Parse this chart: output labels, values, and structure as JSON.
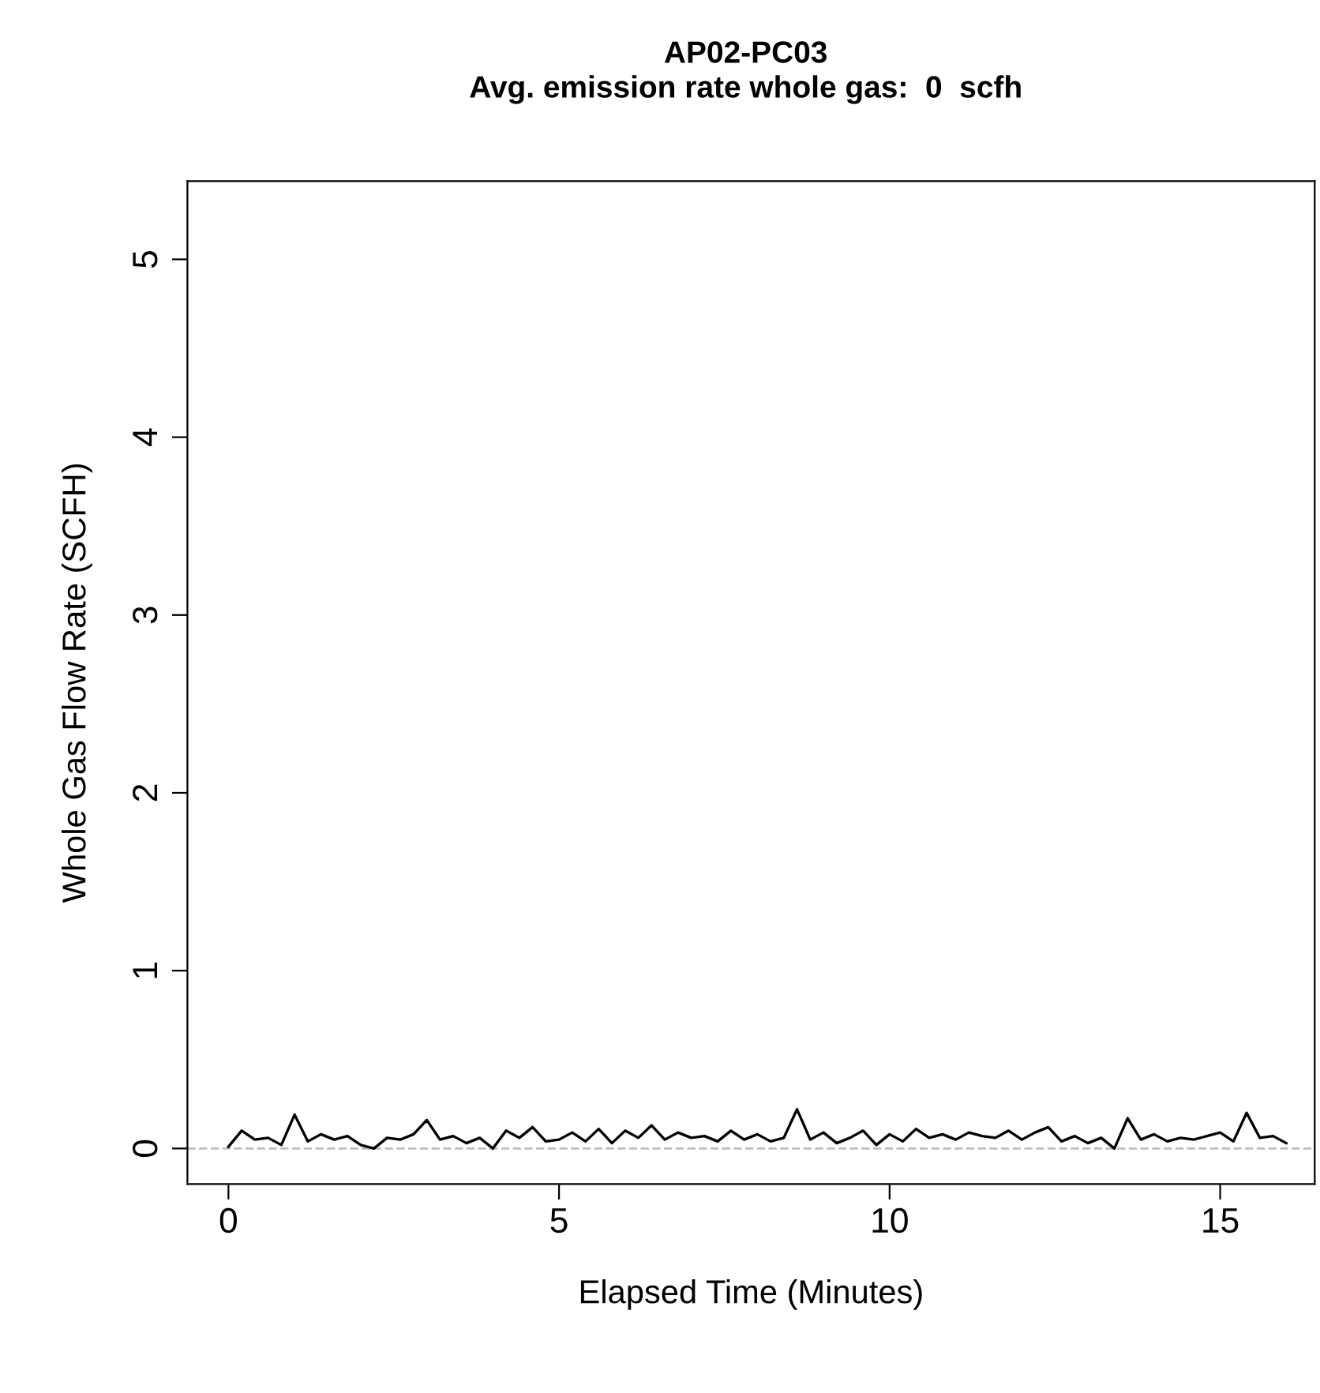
{
  "chart_data": {
    "type": "line",
    "title": "AP02-PC03",
    "subtitle": "Avg. emission rate whole gas:  0  scfh",
    "xlabel": "Elapsed Time (Minutes)",
    "ylabel": "Whole Gas Flow Rate (SCFH)",
    "x": [
      0,
      0.2,
      0.4,
      0.6,
      0.8,
      1,
      1.2,
      1.4,
      1.6,
      1.8,
      2,
      2.2,
      2.4,
      2.6,
      2.8,
      3,
      3.2,
      3.4,
      3.6,
      3.8,
      4,
      4.2,
      4.4,
      4.6,
      4.8,
      5,
      5.2,
      5.4,
      5.6,
      5.8,
      6,
      6.2,
      6.4,
      6.6,
      6.8,
      7,
      7.2,
      7.4,
      7.6,
      7.8,
      8,
      8.2,
      8.4,
      8.6,
      8.8,
      9,
      9.2,
      9.4,
      9.6,
      9.8,
      10,
      10.2,
      10.4,
      10.6,
      10.8,
      11,
      11.2,
      11.4,
      11.6,
      11.8,
      12,
      12.2,
      12.4,
      12.6,
      12.8,
      13,
      13.2,
      13.4,
      13.6,
      13.8,
      14,
      14.2,
      14.4,
      14.6,
      14.8,
      15,
      15.2,
      15.4,
      15.6,
      15.8,
      16
    ],
    "series": [
      {
        "color": "#000000",
        "values": [
          0.01,
          0.1,
          0.05,
          0.06,
          0.02,
          0.19,
          0.04,
          0.08,
          0.05,
          0.07,
          0.02,
          0.0,
          0.06,
          0.05,
          0.08,
          0.16,
          0.05,
          0.07,
          0.03,
          0.06,
          0.0,
          0.1,
          0.06,
          0.12,
          0.04,
          0.05,
          0.09,
          0.04,
          0.11,
          0.03,
          0.1,
          0.06,
          0.13,
          0.05,
          0.09,
          0.06,
          0.07,
          0.04,
          0.1,
          0.05,
          0.08,
          0.04,
          0.06,
          0.22,
          0.05,
          0.09,
          0.03,
          0.06,
          0.1,
          0.02,
          0.08,
          0.04,
          0.11,
          0.06,
          0.08,
          0.05,
          0.09,
          0.07,
          0.06,
          0.1,
          0.05,
          0.09,
          0.12,
          0.04,
          0.07,
          0.03,
          0.06,
          0.0,
          0.17,
          0.05,
          0.08,
          0.04,
          0.06,
          0.05,
          0.07,
          0.09,
          0.04,
          0.2,
          0.06,
          0.07,
          0.03
        ]
      }
    ],
    "xlim": [
      -0.62,
      16.43
    ],
    "ylim": [
      -0.2,
      5.44
    ],
    "xticks": [
      0,
      5,
      10,
      15
    ],
    "yticks": [
      0,
      1,
      2,
      3,
      4,
      5
    ],
    "ref_lines": [
      {
        "axis": "y",
        "value": 0,
        "color": "#bebebe",
        "line_style": "dashed"
      }
    ],
    "grid": false,
    "legend": false
  }
}
